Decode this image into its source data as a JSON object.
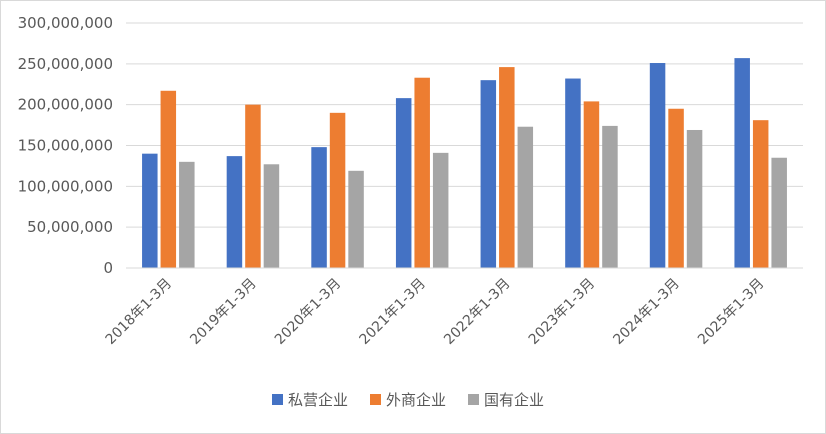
{
  "chart_data": {
    "type": "bar",
    "categories": [
      "2018年1-3月",
      "2019年1-3月",
      "2020年1-3月",
      "2021年1-3月",
      "2022年1-3月",
      "2023年1-3月",
      "2024年1-3月",
      "2025年1-3月"
    ],
    "series": [
      {
        "name": "私营企业",
        "color": "#4472c4",
        "values": [
          140000000,
          137000000,
          148000000,
          208000000,
          230000000,
          232000000,
          251000000,
          257000000
        ]
      },
      {
        "name": "外商企业",
        "color": "#ed7d31",
        "values": [
          217000000,
          200000000,
          190000000,
          233000000,
          246000000,
          204000000,
          195000000,
          181000000
        ]
      },
      {
        "name": "国有企业",
        "color": "#a5a5a5",
        "values": [
          130000000,
          127000000,
          119000000,
          141000000,
          173000000,
          174000000,
          169000000,
          135000000
        ]
      }
    ],
    "ylim": [
      0,
      300000000
    ],
    "yticks": [
      0,
      50000000,
      100000000,
      150000000,
      200000000,
      250000000,
      300000000
    ],
    "ytick_labels": [
      "0",
      "50,000,000",
      "100,000,000",
      "150,000,000",
      "200,000,000",
      "250,000,000",
      "300,000,000"
    ],
    "grid": true,
    "legend_position": "bottom",
    "title": "",
    "xlabel": "",
    "ylabel": ""
  }
}
